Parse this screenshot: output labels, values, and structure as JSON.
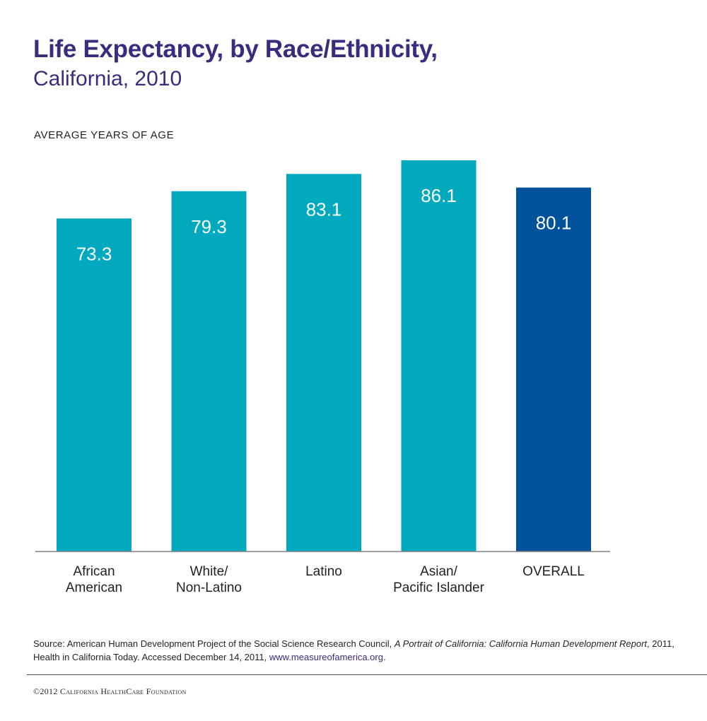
{
  "header": {
    "title": "Life Expectancy, by Race/Ethnicity,",
    "subtitle": "California, 2010"
  },
  "colors": {
    "bar_primary": "#00a9bd",
    "bar_overall": "#00539b",
    "title": "#3b2a7d",
    "axis": "#808080"
  },
  "chart_data": {
    "type": "bar",
    "title": "Life Expectancy, by Race/Ethnicity, California, 2010",
    "ylabel": "AVERAGE YEARS OF AGE",
    "xlabel": "",
    "categories": [
      [
        "African",
        "American"
      ],
      [
        "White/",
        "Non-Latino"
      ],
      [
        "Latino"
      ],
      [
        "Asian/",
        "Pacific Islander"
      ],
      [
        "OVERALL"
      ]
    ],
    "values": [
      73.3,
      79.3,
      83.1,
      86.1,
      80.1
    ],
    "value_labels": [
      "73.3",
      "79.3",
      "83.1",
      "86.1",
      "80.1"
    ],
    "highlight_index": 4,
    "ylim": [
      0,
      86.1
    ],
    "grid": false
  },
  "footer": {
    "source_prefix": "Source: American Human Development Project of the Social Science Research Council, ",
    "source_title": "A Portrait of California: California Human Development Report",
    "source_suffix": ", 2011, Health in California Today. Accessed December 14, 2011, ",
    "source_link": "www.measureofamerica.org",
    "source_end": ".",
    "copyright": "©2012 California HealthCare Foundation"
  }
}
